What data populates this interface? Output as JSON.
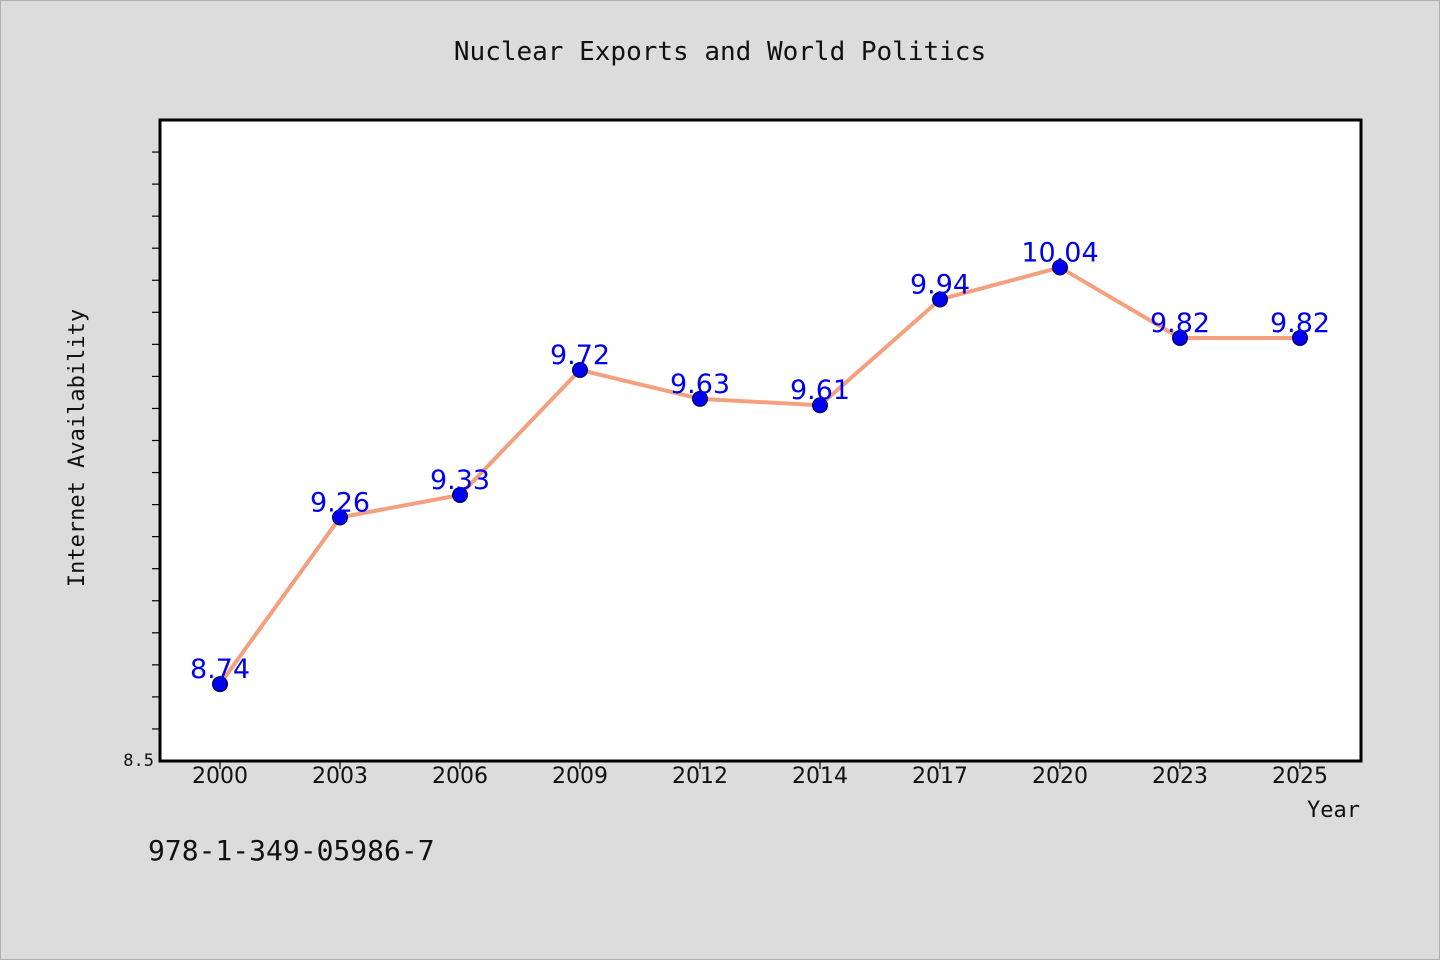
{
  "chart_data": {
    "type": "line",
    "title": "Nuclear Exports and World Politics",
    "xlabel": "Year",
    "ylabel": "Internet Availability",
    "categories": [
      "2000",
      "2003",
      "2006",
      "2009",
      "2012",
      "2014",
      "2017",
      "2020",
      "2023",
      "2025"
    ],
    "series": [
      {
        "values": [
          8.74,
          9.26,
          9.33,
          9.72,
          9.63,
          9.61,
          9.94,
          10.04,
          9.82,
          9.82
        ]
      }
    ],
    "data_labels": [
      "8.74",
      "9.26",
      "9.33",
      "9.72",
      "9.63",
      "9.61",
      "9.94",
      "10.04",
      "9.82",
      "9.82"
    ],
    "ylim": [
      8.5,
      10.5
    ],
    "ytick_labels": [
      "8.5"
    ],
    "grid": false,
    "line_color": "#f4a07e",
    "marker_color": "#0000ee",
    "label_color": "#0000ee",
    "plot_background": "#ffffff",
    "figure_background": "#dcdcdc"
  },
  "footer": {
    "isbn": "978-1-349-05986-7"
  }
}
